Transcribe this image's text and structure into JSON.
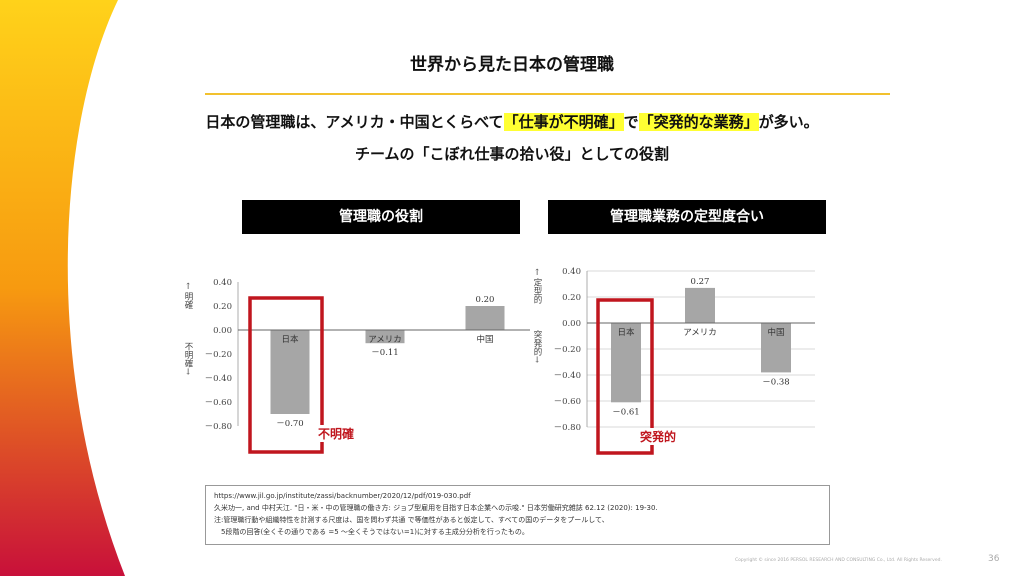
{
  "slide": {
    "title": "世界から見た日本の管理職",
    "subtitle_pre": "日本の管理職は、アメリカ・中国とくらべて",
    "subtitle_hl1": "「仕事が不明確」",
    "subtitle_mid": "で",
    "subtitle_hl2": "「突発的な業務」",
    "subtitle_post": "が多い。",
    "subtitle2": "チームの「こぼれ仕事の拾い役」としての役割",
    "accent_color": "#f2c12e",
    "highlight_color": "#ffff33",
    "callout_color": "#c0161e",
    "copyright": "Copyright © since 2016 PERSOL RESEARCH AND CONSULTING Co., Ltd. All Rights Reserved.",
    "page_number": "36"
  },
  "references": [
    "https://www.jil.go.jp/institute/zassi/backnumber/2020/12/pdf/019-030.pdf",
    "久米功一, and 中村天江. \"日・米・中の管理職の働き方: ジョブ型雇用を目指す日本企業への示唆.\" 日本労働研究雑誌 62.12 (2020): 19-30.",
    "注:管理職行動や組織特性を計測する尺度は、国を問わず共通 で等価性があると仮定して、すべての国のデータをプールして、",
    "　5段階の回答(全くその通りである =5 ～全くそうではない=1)に対する主成分分析を行ったもの。"
  ],
  "chart_data": [
    {
      "type": "bar",
      "title": "管理職の役割",
      "categories": [
        "日本",
        "アメリカ",
        "中国"
      ],
      "values": [
        -0.7,
        -0.11,
        0.2
      ],
      "value_labels": [
        "－0.70",
        "－0.11",
        "0.20"
      ],
      "ylim": [
        -0.8,
        0.4
      ],
      "yticks": [
        "0.40",
        "0.20",
        "0.00",
        "－0.20",
        "－0.40",
        "－0.60",
        "－0.80"
      ],
      "ylabel_top": "↑明確",
      "ylabel_bottom": "不明確↓",
      "grid": false,
      "bar_color": "#a6a6a6",
      "callout": {
        "category": "日本",
        "label": "不明確"
      }
    },
    {
      "type": "bar",
      "title": "管理職業務の定型度合い",
      "categories": [
        "日本",
        "アメリカ",
        "中国"
      ],
      "values": [
        -0.61,
        0.27,
        -0.38
      ],
      "value_labels": [
        "－0.61",
        "0.27",
        "－0.38"
      ],
      "ylim": [
        -0.8,
        0.4
      ],
      "yticks": [
        "0.40",
        "0.20",
        "0.00",
        "－0.20",
        "－0.40",
        "－0.60",
        "－0.80"
      ],
      "ylabel_top": "↑定型的",
      "ylabel_bottom": "突発的↓",
      "grid": true,
      "bar_color": "#a6a6a6",
      "callout": {
        "category": "日本",
        "label": "突発的"
      }
    }
  ]
}
